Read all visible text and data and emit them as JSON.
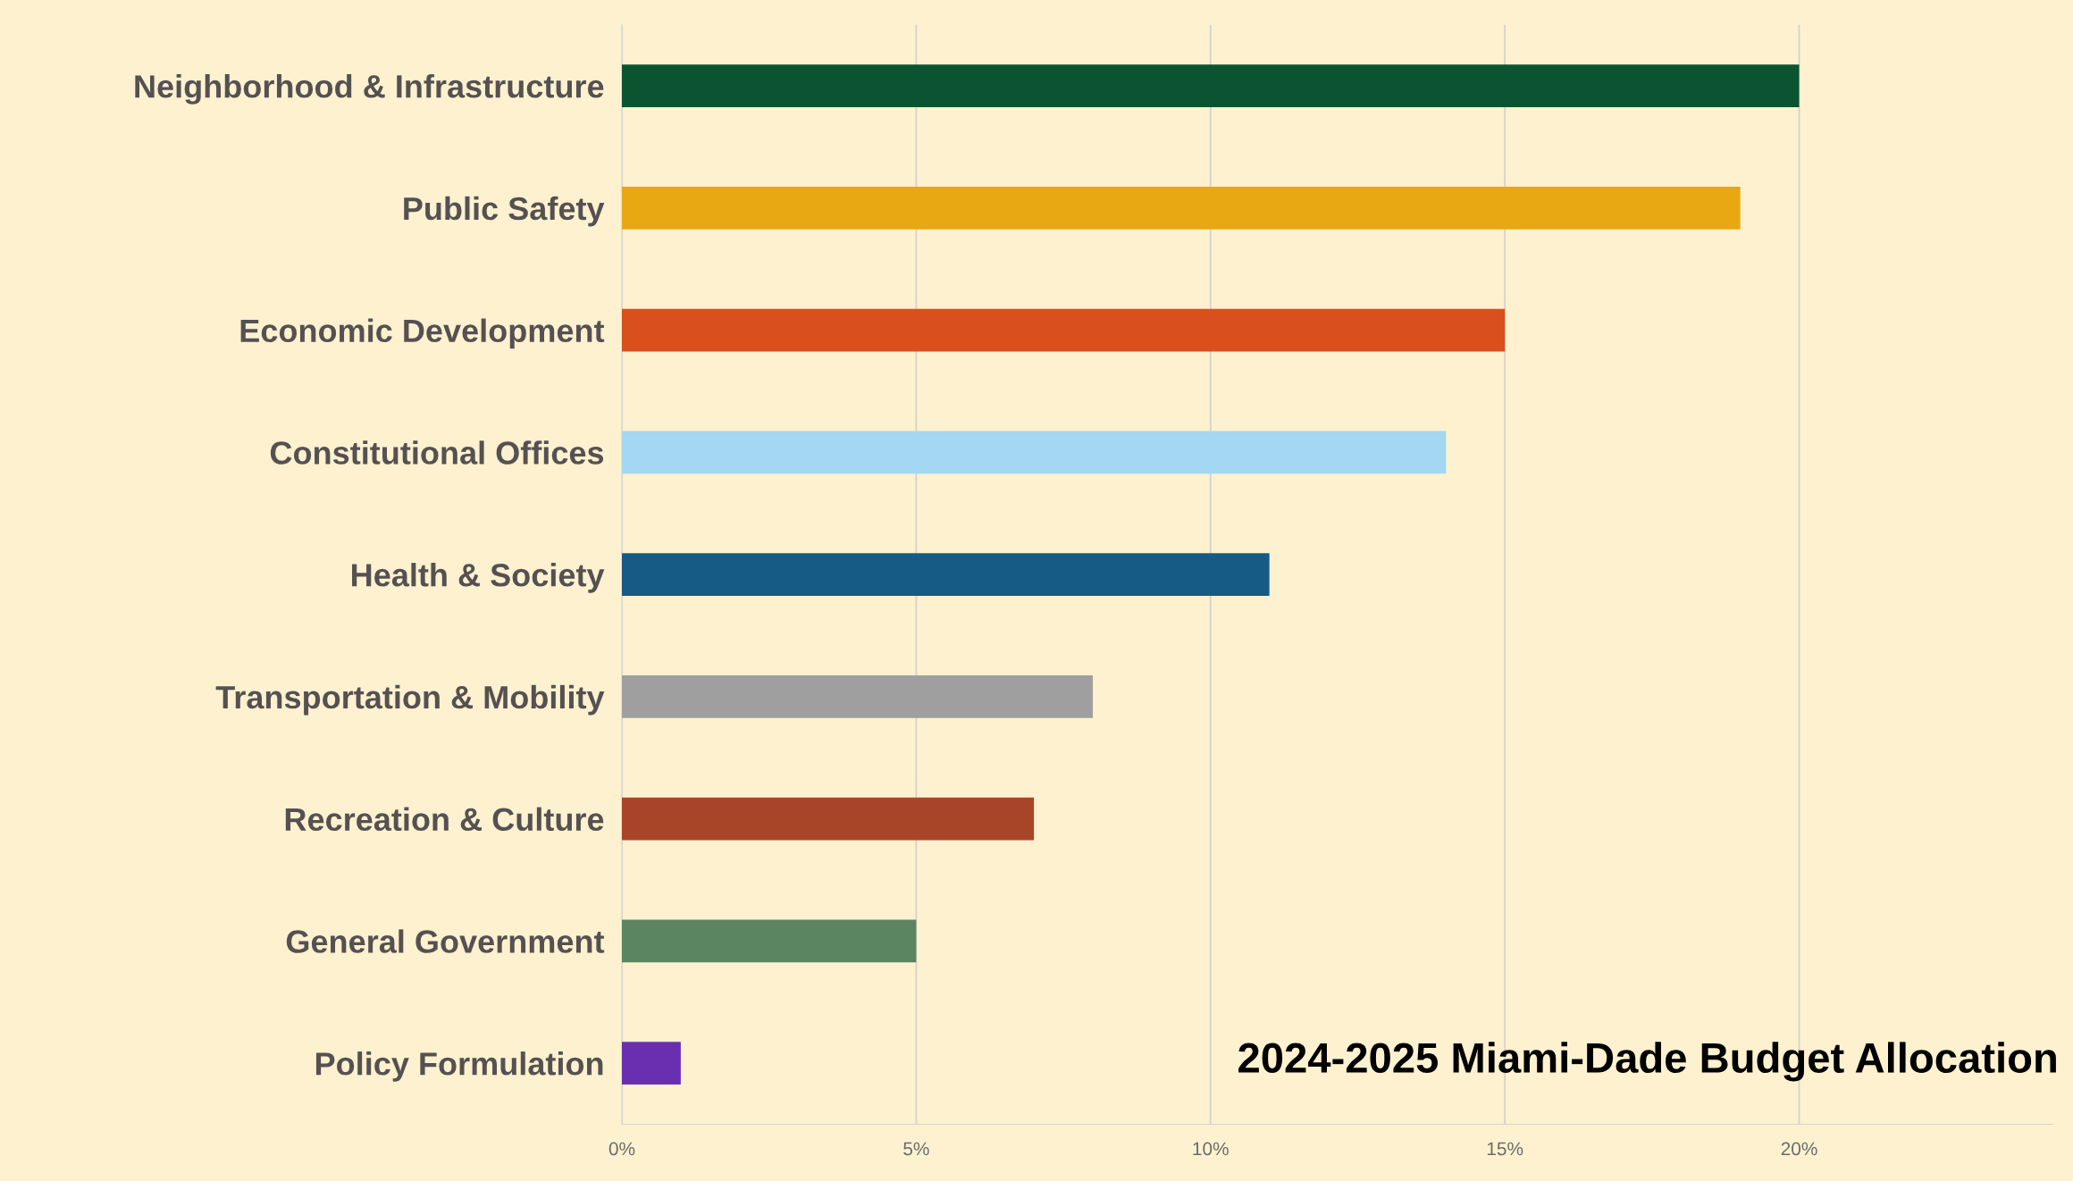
{
  "chart_data": {
    "type": "bar",
    "orientation": "horizontal",
    "title": "2024-2025 Miami-Dade Budget Allocation",
    "categories": [
      "Neighborhood & Infrastructure",
      "Public Safety",
      "Economic Development",
      "Constitutional Offices",
      "Health & Society",
      "Transportation & Mobility",
      "Recreation & Culture",
      "General Government",
      "Policy Formulation"
    ],
    "values": [
      20,
      19,
      15,
      14,
      11,
      8,
      7,
      5,
      1
    ],
    "colors": [
      "#0b5331",
      "#e8a812",
      "#d9501e",
      "#a3d7f2",
      "#155b85",
      "#a09fa0",
      "#a84428",
      "#5a8560",
      "#6a2fb0"
    ],
    "xlim": [
      0,
      24.3
    ],
    "xticks": [
      {
        "value": 0,
        "label": "0%"
      },
      {
        "value": 5,
        "label": "5%"
      },
      {
        "value": 10,
        "label": "10%"
      },
      {
        "value": 15,
        "label": "15%"
      },
      {
        "value": 20,
        "label": "20%"
      }
    ],
    "grid": "x",
    "legend": false
  }
}
